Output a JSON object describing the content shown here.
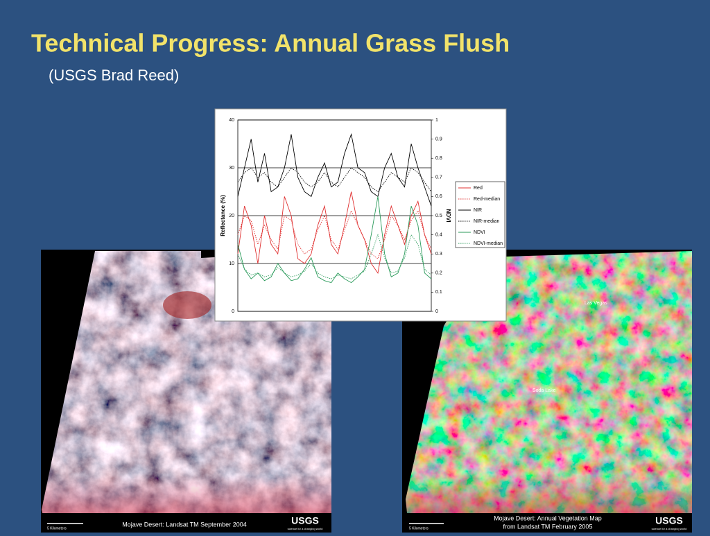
{
  "header": {
    "title": "Technical Progress: Annual Grass Flush",
    "subtitle": "(USGS Brad Reed)"
  },
  "chart_data": {
    "type": "line",
    "ylabel": "Reflectance (%)",
    "y2label": "NDVI",
    "categories": [
      null,
      null,
      null,
      null,
      null,
      null,
      null,
      null,
      null,
      null,
      null,
      null,
      null,
      null,
      null,
      null,
      null,
      null,
      null,
      null,
      null,
      null,
      null,
      null,
      null,
      null,
      null,
      null,
      null,
      null
    ],
    "ylim": [
      0,
      40
    ],
    "yticks": [
      0,
      10,
      20,
      30,
      40
    ],
    "y2lim": [
      0,
      1
    ],
    "y2ticks": [
      0,
      0.1,
      0.2,
      0.3,
      0.4,
      0.5,
      0.6,
      0.7,
      0.8,
      0.9,
      1
    ],
    "grid": true,
    "legend": "right",
    "series": [
      {
        "name": "Red",
        "color": "#e03030",
        "style": "solid",
        "values": [
          12,
          22,
          18,
          10,
          20,
          14,
          12,
          24,
          20,
          11,
          10,
          12,
          18,
          22,
          14,
          12,
          18,
          25,
          18,
          15,
          10,
          8,
          16,
          22,
          18,
          14,
          20,
          23,
          16,
          12
        ]
      },
      {
        "name": "Red-median",
        "color": "#e03030",
        "style": "dotted",
        "values": [
          16,
          20,
          19,
          14,
          18,
          15,
          13,
          20,
          19,
          14,
          12,
          13,
          17,
          20,
          15,
          13,
          17,
          21,
          18,
          15,
          12,
          11,
          15,
          20,
          18,
          15,
          19,
          21,
          16,
          13
        ]
      },
      {
        "name": "NIR",
        "color": "#000000",
        "style": "solid",
        "values": [
          24,
          30,
          36,
          27,
          33,
          25,
          26,
          30,
          37,
          28,
          25,
          24,
          28,
          31,
          26,
          27,
          33,
          37,
          30,
          29,
          25,
          24,
          30,
          33,
          28,
          26,
          35,
          30,
          26,
          22
        ]
      },
      {
        "name": "NIR-median",
        "color": "#000000",
        "style": "dotted",
        "values": [
          27,
          29,
          30,
          28,
          29,
          27,
          26,
          28,
          30,
          29,
          27,
          26,
          27,
          29,
          27,
          26,
          28,
          30,
          29,
          28,
          26,
          25,
          27,
          29,
          28,
          27,
          30,
          29,
          27,
          25
        ]
      },
      {
        "name": "NDVI",
        "color": "#2a9a5a",
        "style": "solid",
        "axis": "y2",
        "values": [
          0.35,
          0.22,
          0.17,
          0.2,
          0.16,
          0.18,
          0.25,
          0.2,
          0.16,
          0.17,
          0.22,
          0.28,
          0.18,
          0.16,
          0.15,
          0.2,
          0.17,
          0.15,
          0.18,
          0.22,
          0.4,
          0.6,
          0.3,
          0.18,
          0.2,
          0.3,
          0.55,
          0.45,
          0.2,
          0.17
        ]
      },
      {
        "name": "NDVI-median",
        "color": "#2a9a5a",
        "style": "dotted",
        "axis": "y2",
        "values": [
          0.3,
          0.22,
          0.19,
          0.2,
          0.18,
          0.19,
          0.23,
          0.2,
          0.18,
          0.19,
          0.21,
          0.25,
          0.2,
          0.18,
          0.17,
          0.19,
          0.18,
          0.17,
          0.19,
          0.21,
          0.3,
          0.4,
          0.28,
          0.2,
          0.21,
          0.28,
          0.4,
          0.35,
          0.22,
          0.19
        ]
      }
    ]
  },
  "images": [
    {
      "caption": [
        "Mojave Desert: Landsat TM September 2004"
      ],
      "scale": "5 Kilometers",
      "logo": "USGS",
      "tagline": "science for a changing world"
    },
    {
      "caption": [
        "Mojave Desert: Annual Vegetation Map",
        "from Landsat TM February 2005"
      ],
      "scale": "5 Kilometers",
      "logo": "USGS",
      "tagline": "science for a changing world",
      "places": [
        "Las Vegas",
        "Soda Lake"
      ]
    }
  ]
}
